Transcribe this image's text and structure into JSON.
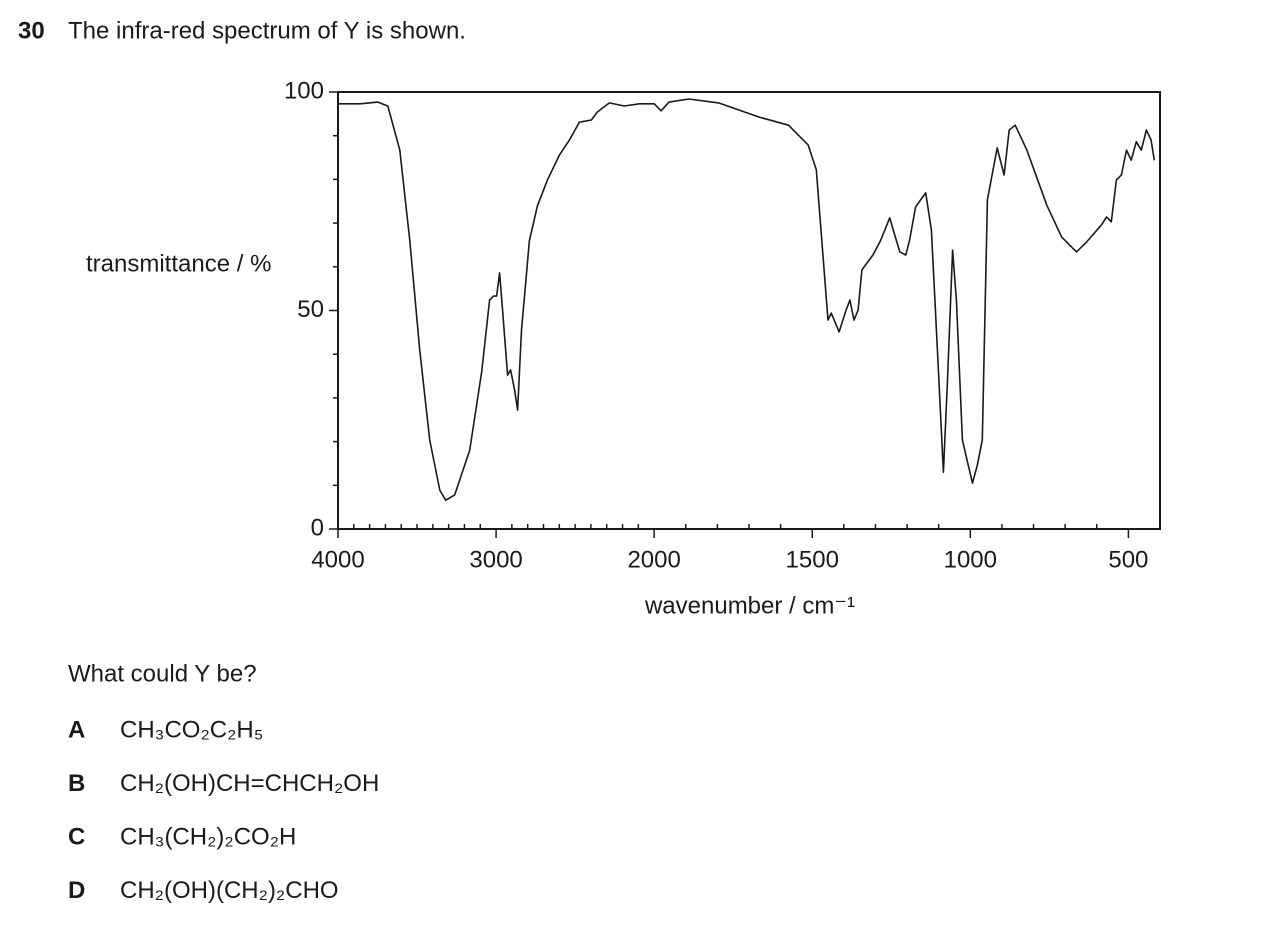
{
  "question": {
    "number": "30",
    "text": "The infra-red spectrum of Y is shown.",
    "prompt": "What could Y be?",
    "options": [
      {
        "letter": "A",
        "formula": "CH₃CO₂C₂H₅"
      },
      {
        "letter": "B",
        "formula": "CH₂(OH)CH=CHCH₂OH"
      },
      {
        "letter": "C",
        "formula": "CH₃(CH₂)₂CO₂H"
      },
      {
        "letter": "D",
        "formula": "CH₂(OH)(CH₂)₂CHO"
      }
    ]
  },
  "chart_data": {
    "type": "line",
    "y_label": "transmittance / %",
    "x_label": "wavenumber / cm⁻¹",
    "x": [
      4000,
      3861,
      3748,
      3685,
      3609,
      3546,
      3483,
      3420,
      3356,
      3319,
      3262,
      3167,
      3091,
      3041,
      3016,
      2997,
      2978,
      2959,
      2927,
      2908,
      2883,
      2864,
      2839,
      2789,
      2738,
      2675,
      2599,
      2536,
      2473,
      2397,
      2360,
      2284,
      2189,
      2095,
      2000,
      1978,
      1953,
      1890,
      1796,
      1670,
      1575,
      1513,
      1487,
      1465,
      1450,
      1440,
      1415,
      1393,
      1381,
      1368,
      1355,
      1343,
      1308,
      1283,
      1255,
      1239,
      1223,
      1204,
      1192,
      1173,
      1141,
      1123,
      1104,
      1085,
      1072,
      1056,
      1044,
      1025,
      1009,
      993,
      978,
      962,
      946,
      915,
      893,
      877,
      858,
      821,
      758,
      711,
      664,
      632,
      585,
      569,
      554,
      538,
      522,
      506,
      491,
      475,
      459,
      443,
      428,
      418
    ],
    "series": [
      {
        "color": "#1a1a1a",
        "values": [
          97.3,
          97.3,
          97.7,
          96.8,
          86.7,
          66,
          41,
          20.4,
          8.9,
          6.6,
          7.8,
          18,
          36,
          52.4,
          53.3,
          53.3,
          58.6,
          50,
          35.2,
          36.4,
          31.8,
          27.2,
          45.5,
          66,
          74,
          79.9,
          85.6,
          89,
          93.1,
          93.6,
          95.4,
          97.5,
          96.8,
          97.3,
          97.3,
          95.7,
          97.7,
          98.4,
          97.5,
          94.3,
          92.4,
          87.9,
          82.2,
          61.6,
          47.8,
          49.4,
          45.1,
          50.1,
          52.4,
          47.8,
          50.1,
          59.3,
          62.7,
          66.1,
          71.2,
          67.3,
          63.4,
          62.7,
          66.1,
          73.7,
          76.9,
          68.4,
          41,
          13,
          34.1,
          63.8,
          52.4,
          20.4,
          15.3,
          10.5,
          14.6,
          20.4,
          75.3,
          87.2,
          81,
          91.3,
          92.4,
          86.7,
          74.1,
          66.8,
          63.4,
          65.7,
          69.6,
          71.4,
          70.3,
          79.9,
          81,
          86.7,
          84.4,
          88.6,
          86.7,
          91.3,
          89,
          84.4
        ]
      }
    ],
    "xlim": [
      4000,
      400
    ],
    "x_scale_change": 2000,
    "ylim": [
      0,
      100
    ],
    "xticks": [
      4000,
      3000,
      2000,
      1500,
      1000,
      500
    ],
    "xticks_minor": [
      3900,
      3800,
      3700,
      3600,
      3500,
      3400,
      3300,
      3200,
      3100,
      2900,
      2800,
      2700,
      2600,
      2500,
      2400,
      2300,
      2200,
      2100,
      1900,
      1800,
      1700,
      1600,
      1400,
      1300,
      1200,
      1100,
      900,
      800,
      700,
      600
    ],
    "yticks": [
      0,
      50,
      100
    ],
    "yticks_minor": [
      10,
      20,
      30,
      40,
      60,
      70,
      80,
      90
    ]
  }
}
